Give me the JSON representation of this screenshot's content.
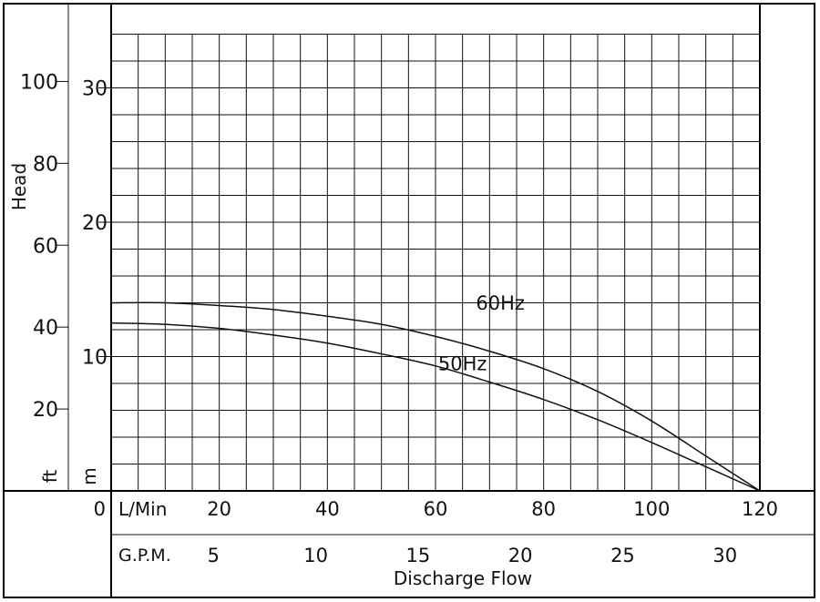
{
  "chart_data": {
    "type": "line",
    "x_unit": "L/Min",
    "x_alt_unit": "G.P.M.",
    "xlabel": "Discharge Flow",
    "ylabel": "Head",
    "y_unit_m": "m",
    "y_unit_ft": "ft",
    "xlim": [
      0,
      120
    ],
    "ylim_m": [
      0,
      34
    ],
    "grid": true,
    "x_ticks": [
      "0",
      "20",
      "40",
      "60",
      "80",
      "100",
      "120"
    ],
    "gpm_ticks": [
      "5",
      "10",
      "15",
      "20",
      "25",
      "30"
    ],
    "m_ticks": [
      "10",
      "20",
      "30"
    ],
    "ft_ticks": [
      "20",
      "40",
      "60",
      "80",
      "100"
    ],
    "series": [
      {
        "name": "60Hz",
        "x": [
          0,
          10,
          20,
          30,
          40,
          50,
          60,
          70,
          80,
          90,
          100,
          110,
          120
        ],
        "y": [
          14,
          14,
          13.8,
          13.5,
          13,
          12.4,
          11.5,
          10.4,
          9.1,
          7.4,
          5.2,
          2.6,
          0
        ]
      },
      {
        "name": "50Hz",
        "x": [
          0,
          10,
          20,
          30,
          40,
          50,
          60,
          70,
          80,
          90,
          100,
          110,
          120
        ],
        "y": [
          12.5,
          12.4,
          12.1,
          11.6,
          11,
          10.2,
          9.3,
          8.1,
          6.8,
          5.3,
          3.6,
          1.8,
          0
        ]
      }
    ]
  }
}
